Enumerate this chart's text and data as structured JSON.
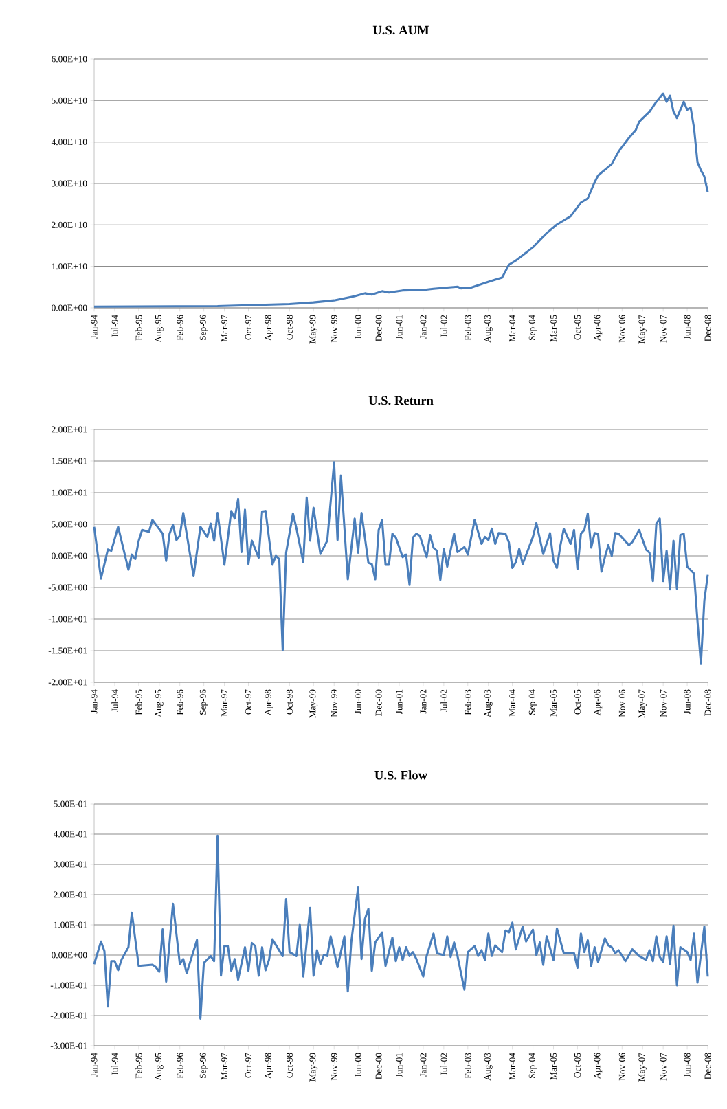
{
  "chart_data": [
    {
      "type": "line",
      "title": "U.S. AUM",
      "color": "#4a7ebb",
      "grid": "y",
      "xlim": [
        "1994-01",
        "2008-12"
      ],
      "ylim": [
        0,
        60000000000.0
      ],
      "xticks": [
        {
          "value": "1994-01",
          "label": "Jan-94"
        },
        {
          "value": "1994-07",
          "label": "Jul-94"
        },
        {
          "value": "1995-02",
          "label": "Feb-95"
        },
        {
          "value": "1995-08",
          "label": "Aug-95"
        },
        {
          "value": "1996-02",
          "label": "Feb-96"
        },
        {
          "value": "1996-09",
          "label": "Sep-96"
        },
        {
          "value": "1997-03",
          "label": "Mar-97"
        },
        {
          "value": "1997-10",
          "label": "Oct-97"
        },
        {
          "value": "1998-04",
          "label": "Apr-98"
        },
        {
          "value": "1998-10",
          "label": "Oct-98"
        },
        {
          "value": "1999-05",
          "label": "May-99"
        },
        {
          "value": "1999-11",
          "label": "Nov-99"
        },
        {
          "value": "2000-06",
          "label": "Jun-00"
        },
        {
          "value": "2000-12",
          "label": "Dec-00"
        },
        {
          "value": "2001-06",
          "label": "Jun-01"
        },
        {
          "value": "2002-01",
          "label": "Jan-02"
        },
        {
          "value": "2002-07",
          "label": "Jul-02"
        },
        {
          "value": "2003-02",
          "label": "Feb-03"
        },
        {
          "value": "2003-08",
          "label": "Aug-03"
        },
        {
          "value": "2004-03",
          "label": "Mar-04"
        },
        {
          "value": "2004-09",
          "label": "Sep-04"
        },
        {
          "value": "2005-03",
          "label": "Mar-05"
        },
        {
          "value": "2005-10",
          "label": "Oct-05"
        },
        {
          "value": "2006-04",
          "label": "Apr-06"
        },
        {
          "value": "2006-11",
          "label": "Nov-06"
        },
        {
          "value": "2007-05",
          "label": "May-07"
        },
        {
          "value": "2007-11",
          "label": "Nov-07"
        },
        {
          "value": "2008-06",
          "label": "Jun-08"
        },
        {
          "value": "2008-12",
          "label": "Dec-08"
        }
      ],
      "yticks": [
        {
          "value": 0,
          "label": "0.00E+00"
        },
        {
          "value": 10000000000.0,
          "label": "1.00E+10"
        },
        {
          "value": 20000000000.0,
          "label": "2.00E+10"
        },
        {
          "value": 30000000000.0,
          "label": "3.00E+10"
        },
        {
          "value": 40000000000.0,
          "label": "4.00E+10"
        },
        {
          "value": 50000000000.0,
          "label": "5.00E+10"
        },
        {
          "value": 60000000000.0,
          "label": "6.00E+10"
        }
      ],
      "x": [
        "1994-01",
        "1997-01",
        "1998-10",
        "1999-05",
        "1999-11",
        "2000-05",
        "2000-08",
        "2000-10",
        "2001-01",
        "2001-03",
        "2001-07",
        "2002-01",
        "2002-04",
        "2002-08",
        "2002-11",
        "2002-12",
        "2003-03",
        "2003-07",
        "2003-10",
        "2003-12",
        "2004-02",
        "2004-04",
        "2004-07",
        "2004-09",
        "2005-01",
        "2005-04",
        "2005-08",
        "2005-11",
        "2006-01",
        "2006-03",
        "2006-04",
        "2006-08",
        "2006-10",
        "2007-01",
        "2007-03",
        "2007-04",
        "2007-07",
        "2007-09",
        "2007-11",
        "2007-12",
        "2008-01",
        "2008-02",
        "2008-03",
        "2008-05",
        "2008-06",
        "2008-07",
        "2008-08",
        "2008-09",
        "2008-10",
        "2008-11",
        "2008-12"
      ],
      "values": [
        300000000.0,
        400000000.0,
        900000000.0,
        1300000000.0,
        1800000000.0,
        2800000000.0,
        3500000000.0,
        3200000000.0,
        4000000000.0,
        3700000000.0,
        4200000000.0,
        4300000000.0,
        4600000000.0,
        4900000000.0,
        5100000000.0,
        4700000000.0,
        4900000000.0,
        6000000000.0,
        6800000000.0,
        7300000000.0,
        10400000000.0,
        11400000000.0,
        13300000000.0,
        14600000000.0,
        18000000000.0,
        20100000000.0,
        22100000000.0,
        25400000000.0,
        26400000000.0,
        30300000000.0,
        31900000000.0,
        34700000000.0,
        37700000000.0,
        41000000000.0,
        42900000000.0,
        44900000000.0,
        47300000000.0,
        49700000000.0,
        51700000000.0,
        49700000000.0,
        51200000000.0,
        47300000000.0,
        45800000000.0,
        49700000000.0,
        47800000000.0,
        48300000000.0,
        43400000000.0,
        35100000000.0,
        33200000000.0,
        31700000000.0,
        27900000000.0
      ]
    },
    {
      "type": "line",
      "title": "U.S. Return",
      "color": "#4a7ebb",
      "grid": "y",
      "xlim": [
        "1994-01",
        "2008-12"
      ],
      "ylim": [
        -20,
        20
      ],
      "xticks": [
        {
          "value": "1994-01",
          "label": "Jan-94"
        },
        {
          "value": "1994-07",
          "label": "Jul-94"
        },
        {
          "value": "1995-02",
          "label": "Feb-95"
        },
        {
          "value": "1995-08",
          "label": "Aug-95"
        },
        {
          "value": "1996-02",
          "label": "Feb-96"
        },
        {
          "value": "1996-09",
          "label": "Sep-96"
        },
        {
          "value": "1997-03",
          "label": "Mar-97"
        },
        {
          "value": "1997-10",
          "label": "Oct-97"
        },
        {
          "value": "1998-04",
          "label": "Apr-98"
        },
        {
          "value": "1998-10",
          "label": "Oct-98"
        },
        {
          "value": "1999-05",
          "label": "May-99"
        },
        {
          "value": "1999-11",
          "label": "Nov-99"
        },
        {
          "value": "2000-06",
          "label": "Jun-00"
        },
        {
          "value": "2000-12",
          "label": "Dec-00"
        },
        {
          "value": "2001-06",
          "label": "Jun-01"
        },
        {
          "value": "2002-01",
          "label": "Jan-02"
        },
        {
          "value": "2002-07",
          "label": "Jul-02"
        },
        {
          "value": "2003-02",
          "label": "Feb-03"
        },
        {
          "value": "2003-08",
          "label": "Aug-03"
        },
        {
          "value": "2004-03",
          "label": "Mar-04"
        },
        {
          "value": "2004-09",
          "label": "Sep-04"
        },
        {
          "value": "2005-03",
          "label": "Mar-05"
        },
        {
          "value": "2005-10",
          "label": "Oct-05"
        },
        {
          "value": "2006-04",
          "label": "Apr-06"
        },
        {
          "value": "2006-11",
          "label": "Nov-06"
        },
        {
          "value": "2007-05",
          "label": "May-07"
        },
        {
          "value": "2007-11",
          "label": "Nov-07"
        },
        {
          "value": "2008-06",
          "label": "Jun-08"
        },
        {
          "value": "2008-12",
          "label": "Dec-08"
        }
      ],
      "yticks": [
        {
          "value": -20,
          "label": "-2.00E+01"
        },
        {
          "value": -15,
          "label": "-1.50E+01"
        },
        {
          "value": -10,
          "label": "-1.00E+01"
        },
        {
          "value": -5,
          "label": "-5.00E+00"
        },
        {
          "value": 0,
          "label": "0.00E+00"
        },
        {
          "value": 5,
          "label": "5.00E+00"
        },
        {
          "value": 10,
          "label": "1.00E+01"
        },
        {
          "value": 15,
          "label": "1.50E+01"
        },
        {
          "value": 20,
          "label": "2.00E+01"
        }
      ],
      "x": [
        "1994-01",
        "1994-03",
        "1994-05",
        "1994-06",
        "1994-08",
        "1994-11",
        "1994-12",
        "1995-01",
        "1995-02",
        "1995-03",
        "1995-05",
        "1995-06",
        "1995-09",
        "1995-10",
        "1995-11",
        "1995-12",
        "1996-01",
        "1996-02",
        "1996-03",
        "1996-06",
        "1996-08",
        "1996-10",
        "1996-11",
        "1996-12",
        "1997-01",
        "1997-03",
        "1997-05",
        "1997-06",
        "1997-07",
        "1997-08",
        "1997-09",
        "1997-10",
        "1997-11",
        "1998-01",
        "1998-02",
        "1998-03",
        "1998-05",
        "1998-06",
        "1998-07",
        "1998-08",
        "1998-09",
        "1998-11",
        "1998-12",
        "1999-02",
        "1999-03",
        "1999-04",
        "1999-05",
        "1999-07",
        "1999-09",
        "1999-11",
        "1999-12",
        "2000-01",
        "2000-03",
        "2000-05",
        "2000-06",
        "2000-07",
        "2000-09",
        "2000-10",
        "2000-11",
        "2000-12",
        "2001-01",
        "2001-02",
        "2001-03",
        "2001-04",
        "2001-05",
        "2001-07",
        "2001-08",
        "2001-09",
        "2001-10",
        "2001-11",
        "2001-12",
        "2002-02",
        "2002-03",
        "2002-04",
        "2002-05",
        "2002-06",
        "2002-07",
        "2002-08",
        "2002-10",
        "2002-11",
        "2003-01",
        "2003-02",
        "2003-04",
        "2003-06",
        "2003-07",
        "2003-08",
        "2003-09",
        "2003-10",
        "2003-11",
        "2004-01",
        "2004-02",
        "2004-03",
        "2004-04",
        "2004-05",
        "2004-06",
        "2004-09",
        "2004-10",
        "2004-12",
        "2005-02",
        "2005-03",
        "2005-04",
        "2005-05",
        "2005-06",
        "2005-08",
        "2005-09",
        "2005-10",
        "2005-11",
        "2005-12",
        "2006-01",
        "2006-02",
        "2006-03",
        "2006-04",
        "2006-05",
        "2006-06",
        "2006-07",
        "2006-08",
        "2006-09",
        "2006-10",
        "2007-01",
        "2007-02",
        "2007-04",
        "2007-06",
        "2007-07",
        "2007-08",
        "2007-09",
        "2007-10",
        "2007-11",
        "2007-12",
        "2008-01",
        "2008-02",
        "2008-03",
        "2008-04",
        "2008-05",
        "2008-06",
        "2008-08",
        "2008-09",
        "2008-10",
        "2008-11",
        "2008-12"
      ],
      "values": [
        4.6,
        -3.6,
        1.0,
        0.8,
        4.6,
        -2.2,
        0.2,
        -0.5,
        2.4,
        4.1,
        3.8,
        5.7,
        3.5,
        -0.8,
        3.5,
        4.9,
        2.5,
        3.2,
        6.8,
        -3.2,
        4.6,
        3.0,
        5.1,
        2.4,
        6.8,
        -1.4,
        7.1,
        5.9,
        9.0,
        0.6,
        7.3,
        -1.3,
        2.4,
        -0.3,
        7.0,
        7.1,
        -1.4,
        0,
        -0.5,
        -14.9,
        0.5,
        6.7,
        4.4,
        -1.0,
        9.2,
        2.4,
        7.6,
        0.3,
        2.4,
        14.8,
        2.5,
        12.7,
        -3.7,
        5.9,
        0.5,
        6.8,
        -1.1,
        -1.3,
        -3.7,
        4.1,
        5.7,
        -1.4,
        -1.4,
        3.5,
        2.9,
        -0.2,
        0.2,
        -4.6,
        2.9,
        3.5,
        3.2,
        -0.2,
        3.3,
        1.3,
        0.8,
        -3.8,
        1.1,
        -1.7,
        3.5,
        0.6,
        1.4,
        0.2,
        5.7,
        1.9,
        3.0,
        2.5,
        4.3,
        1.9,
        3.6,
        3.5,
        2.1,
        -1.9,
        -1.0,
        1.1,
        -1.3,
        3.0,
        5.2,
        0.3,
        3.6,
        -0.8,
        -1.9,
        1.6,
        4.3,
        1.9,
        4.1,
        -2.1,
        3.5,
        4.1,
        6.7,
        1.3,
        3.6,
        3.5,
        -2.5,
        -0.2,
        1.7,
        0,
        3.6,
        3.5,
        1.7,
        2.2,
        4.1,
        1.0,
        0.5,
        -4.0,
        5.1,
        5.9,
        -4.0,
        0.8,
        -5.3,
        2.4,
        -5.2,
        3.3,
        3.5,
        -1.7,
        -2.8,
        -10.3,
        -17.1,
        -7.1,
        -3.0
      ]
    },
    {
      "type": "line",
      "title": "U.S. Flow",
      "color": "#4a7ebb",
      "grid": "y",
      "xlim": [
        "1994-01",
        "2008-12"
      ],
      "ylim": [
        -0.3,
        0.5
      ],
      "xticks": [
        {
          "value": "1994-01",
          "label": "Jan-94"
        },
        {
          "value": "1994-07",
          "label": "Jul-94"
        },
        {
          "value": "1995-02",
          "label": "Feb-95"
        },
        {
          "value": "1995-08",
          "label": "Aug-95"
        },
        {
          "value": "1996-02",
          "label": "Feb-96"
        },
        {
          "value": "1996-09",
          "label": "Sep-96"
        },
        {
          "value": "1997-03",
          "label": "Mar-97"
        },
        {
          "value": "1997-10",
          "label": "Oct-97"
        },
        {
          "value": "1998-04",
          "label": "Apr-98"
        },
        {
          "value": "1998-10",
          "label": "Oct-98"
        },
        {
          "value": "1999-05",
          "label": "May-99"
        },
        {
          "value": "1999-11",
          "label": "Nov-99"
        },
        {
          "value": "2000-06",
          "label": "Jun-00"
        },
        {
          "value": "2000-12",
          "label": "Dec-00"
        },
        {
          "value": "2001-06",
          "label": "Jun-01"
        },
        {
          "value": "2002-01",
          "label": "Jan-02"
        },
        {
          "value": "2002-07",
          "label": "Jul-02"
        },
        {
          "value": "2003-02",
          "label": "Feb-03"
        },
        {
          "value": "2003-08",
          "label": "Aug-03"
        },
        {
          "value": "2004-03",
          "label": "Mar-04"
        },
        {
          "value": "2004-09",
          "label": "Sep-04"
        },
        {
          "value": "2005-03",
          "label": "Mar-05"
        },
        {
          "value": "2005-10",
          "label": "Oct-05"
        },
        {
          "value": "2006-04",
          "label": "Apr-06"
        },
        {
          "value": "2006-11",
          "label": "Nov-06"
        },
        {
          "value": "2007-05",
          "label": "May-07"
        },
        {
          "value": "2007-11",
          "label": "Nov-07"
        },
        {
          "value": "2008-06",
          "label": "Jun-08"
        },
        {
          "value": "2008-12",
          "label": "Dec-08"
        }
      ],
      "yticks": [
        {
          "value": -0.3,
          "label": "-3.00E-01"
        },
        {
          "value": -0.2,
          "label": "-2.00E-01"
        },
        {
          "value": -0.1,
          "label": "-1.00E-01"
        },
        {
          "value": 0,
          "label": "0.00E+00"
        },
        {
          "value": 0.1,
          "label": "1.00E-01"
        },
        {
          "value": 0.2,
          "label": "2.00E-01"
        },
        {
          "value": 0.3,
          "label": "3.00E-01"
        },
        {
          "value": 0.4,
          "label": "4.00E-01"
        },
        {
          "value": 0.5,
          "label": "5.00E-01"
        }
      ],
      "x": [
        "1994-01",
        "1994-03",
        "1994-04",
        "1994-05",
        "1994-06",
        "1994-07",
        "1994-08",
        "1994-09",
        "1994-11",
        "1994-12",
        "1995-02",
        "1995-06",
        "1995-07",
        "1995-08",
        "1995-09",
        "1995-10",
        "1995-12",
        "1996-02",
        "1996-03",
        "1996-04",
        "1996-07",
        "1996-08",
        "1996-09",
        "1996-11",
        "1996-12",
        "1997-01",
        "1997-02",
        "1997-03",
        "1997-04",
        "1997-05",
        "1997-06",
        "1997-07",
        "1997-09",
        "1997-10",
        "1997-11",
        "1997-12",
        "1998-01",
        "1998-02",
        "1998-03",
        "1998-04",
        "1998-05",
        "1998-08",
        "1998-09",
        "1998-10",
        "1998-12",
        "1999-01",
        "1999-02",
        "1999-04",
        "1999-05",
        "1999-06",
        "1999-07",
        "1999-08",
        "1999-09",
        "1999-10",
        "1999-12",
        "2000-02",
        "2000-03",
        "2000-04",
        "2000-06",
        "2000-07",
        "2000-08",
        "2000-09",
        "2000-10",
        "2000-11",
        "2001-01",
        "2001-02",
        "2001-04",
        "2001-05",
        "2001-06",
        "2001-07",
        "2001-08",
        "2001-09",
        "2001-10",
        "2001-11",
        "2002-01",
        "2002-02",
        "2002-04",
        "2002-05",
        "2002-07",
        "2002-08",
        "2002-09",
        "2002-10",
        "2002-11",
        "2003-01",
        "2003-02",
        "2003-04",
        "2003-05",
        "2003-06",
        "2003-07",
        "2003-08",
        "2003-09",
        "2003-10",
        "2003-12",
        "2004-01",
        "2004-02",
        "2004-03",
        "2004-04",
        "2004-06",
        "2004-07",
        "2004-09",
        "2004-10",
        "2004-11",
        "2004-12",
        "2005-01",
        "2005-03",
        "2005-04",
        "2005-06",
        "2005-09",
        "2005-10",
        "2005-11",
        "2005-12",
        "2006-01",
        "2006-02",
        "2006-03",
        "2006-04",
        "2006-06",
        "2006-07",
        "2006-08",
        "2006-09",
        "2006-10",
        "2006-12",
        "2007-02",
        "2007-04",
        "2007-06",
        "2007-07",
        "2007-08",
        "2007-09",
        "2007-10",
        "2007-11",
        "2007-12",
        "2008-01",
        "2008-02",
        "2008-03",
        "2008-04",
        "2008-06",
        "2008-07",
        "2008-08",
        "2008-09",
        "2008-11",
        "2008-12"
      ],
      "values": [
        -0.03,
        0.045,
        0.013,
        -0.17,
        -0.02,
        -0.02,
        -0.05,
        -0.015,
        0.026,
        0.14,
        -0.036,
        -0.032,
        -0.04,
        -0.055,
        0.085,
        -0.088,
        0.17,
        -0.03,
        -0.013,
        -0.06,
        0.05,
        -0.21,
        -0.026,
        -0.003,
        -0.02,
        0.395,
        -0.068,
        0.03,
        0.03,
        -0.052,
        -0.013,
        -0.081,
        0.026,
        -0.052,
        0.04,
        0.03,
        -0.068,
        0.026,
        -0.05,
        -0.016,
        0.052,
        -0.003,
        0.185,
        0.01,
        -0.003,
        0.1,
        -0.071,
        0.156,
        -0.068,
        0.016,
        -0.03,
        0,
        -0.003,
        0.062,
        -0.04,
        0.062,
        -0.12,
        0.042,
        0.224,
        -0.013,
        0.12,
        0.153,
        -0.052,
        0.042,
        0.075,
        -0.036,
        0.058,
        -0.02,
        0.026,
        -0.016,
        0.026,
        -0.003,
        0.01,
        -0.013,
        -0.071,
        -0.003,
        0.071,
        0.006,
        0,
        0.062,
        -0.006,
        0.042,
        -0.003,
        -0.114,
        0.01,
        0.03,
        -0.003,
        0.016,
        -0.016,
        0.071,
        -0.003,
        0.032,
        0.01,
        0.081,
        0.075,
        0.107,
        0.019,
        0.094,
        0.045,
        0.084,
        0,
        0.042,
        -0.032,
        0.062,
        -0.016,
        0.088,
        0.006,
        0.006,
        -0.042,
        0.071,
        0.01,
        0.049,
        -0.036,
        0.026,
        -0.023,
        0.055,
        0.032,
        0.026,
        0.006,
        0.016,
        -0.02,
        0.019,
        -0.003,
        -0.016,
        0.016,
        -0.02,
        0.062,
        -0.006,
        -0.023,
        0.062,
        -0.03,
        0.097,
        -0.1,
        0.026,
        0.01,
        -0.016,
        0.071,
        -0.091,
        0.094,
        -0.071
      ]
    }
  ]
}
